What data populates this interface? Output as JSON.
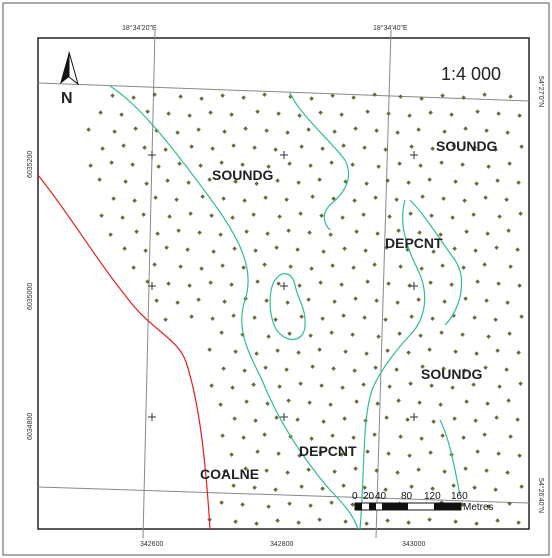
{
  "map": {
    "scale_ratio": "1:4 000",
    "north_arrow_letter": "N",
    "coordinates": {
      "top_lon_1": "18°34'20\"E",
      "top_lon_2": "18°34'40\"E",
      "bottom_x_1": "342600",
      "bottom_x_2": "342800",
      "bottom_x_3": "343000",
      "left_y_1": "6035200",
      "left_y_2": "6035000",
      "left_y_3": "6034800",
      "right_lat_1": "54°27'0\"N",
      "right_lat_2": "54°26'40\"N"
    },
    "labels": {
      "soundg_1": "SOUNDG",
      "soundg_2": "SOUNDG",
      "soundg_3": "SOUNDG",
      "depcnt_1": "DEPCNT",
      "depcnt_2": "DEPCNT",
      "coalne": "COALNE"
    },
    "scale_bar": {
      "ticks": [
        "0",
        "20",
        "40",
        "80",
        "120",
        "160"
      ],
      "unit": "Metres"
    },
    "colors": {
      "soundg_label": "#4b1a5e",
      "depcnt": "#2fbf8f",
      "coalne": "#e82020",
      "dots": "#6b6b3a",
      "grid": "#888888"
    }
  }
}
